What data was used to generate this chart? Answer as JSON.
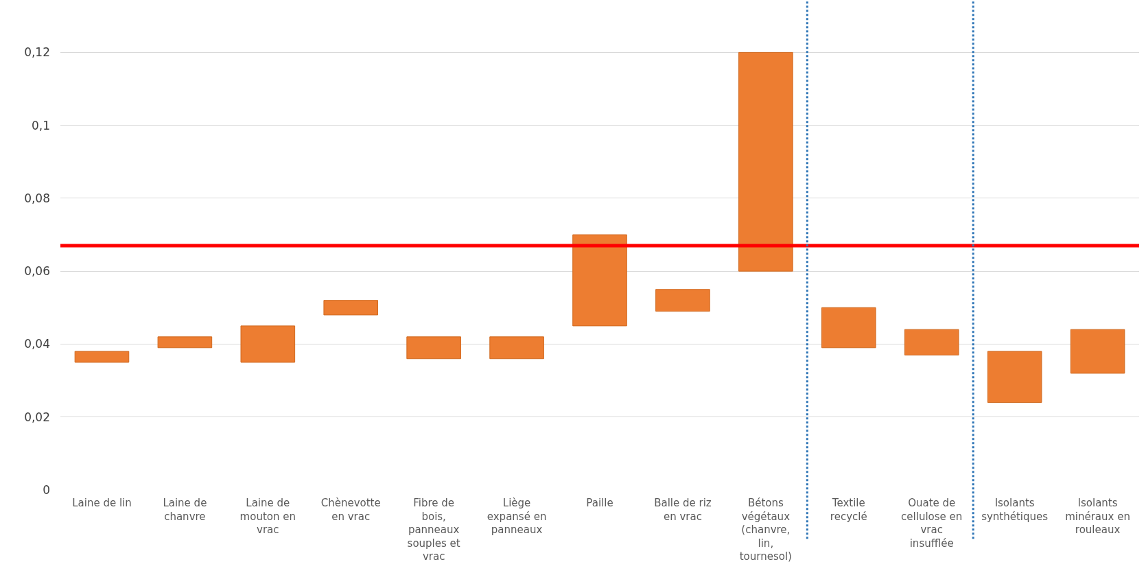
{
  "chart_data": {
    "type": "bar",
    "categories": [
      "Laine de lin",
      "Laine de chanvre",
      "Laine de mouton en vrac",
      "Chènevotte en vrac",
      "Fibre de bois, panneaux souples et vrac",
      "Liège expansé en panneaux",
      "Paille",
      "Balle de riz en vrac",
      "Bétons végétaux (chanvre, lin, tournesol)",
      "Textile recyclé",
      "Ouate de cellulose en vrac insufflée",
      "Isolants synthétiques",
      "Isolants minéraux en rouleaux"
    ],
    "base": [
      0.035,
      0.039,
      0.035,
      0.048,
      0.036,
      0.036,
      0.045,
      0.049,
      0.06,
      0.039,
      0.037,
      0.024,
      0.032
    ],
    "values": [
      0.003,
      0.003,
      0.01,
      0.004,
      0.006,
      0.006,
      0.025,
      0.006,
      0.06,
      0.011,
      0.007,
      0.014,
      0.012
    ],
    "color": "#ed7d31",
    "ylim": [
      0,
      0.134
    ],
    "yticks": [
      0,
      {
        "value": 0.02,
        "label": "0,02"
      },
      {
        "value": 0.04,
        "label": "0,04"
      },
      {
        "value": 0.06,
        "label": "0,06"
      },
      {
        "value": 0.08,
        "label": "0,08"
      },
      {
        "value": 0.1,
        "label": "0,1"
      },
      {
        "value": 0.12,
        "label": "0,12"
      }
    ],
    "grid": "y",
    "legend": false,
    "ref_lines": [
      {
        "axis": "y",
        "value": 0.067,
        "color": "#ff0000",
        "line_style": "solid"
      }
    ]
  }
}
